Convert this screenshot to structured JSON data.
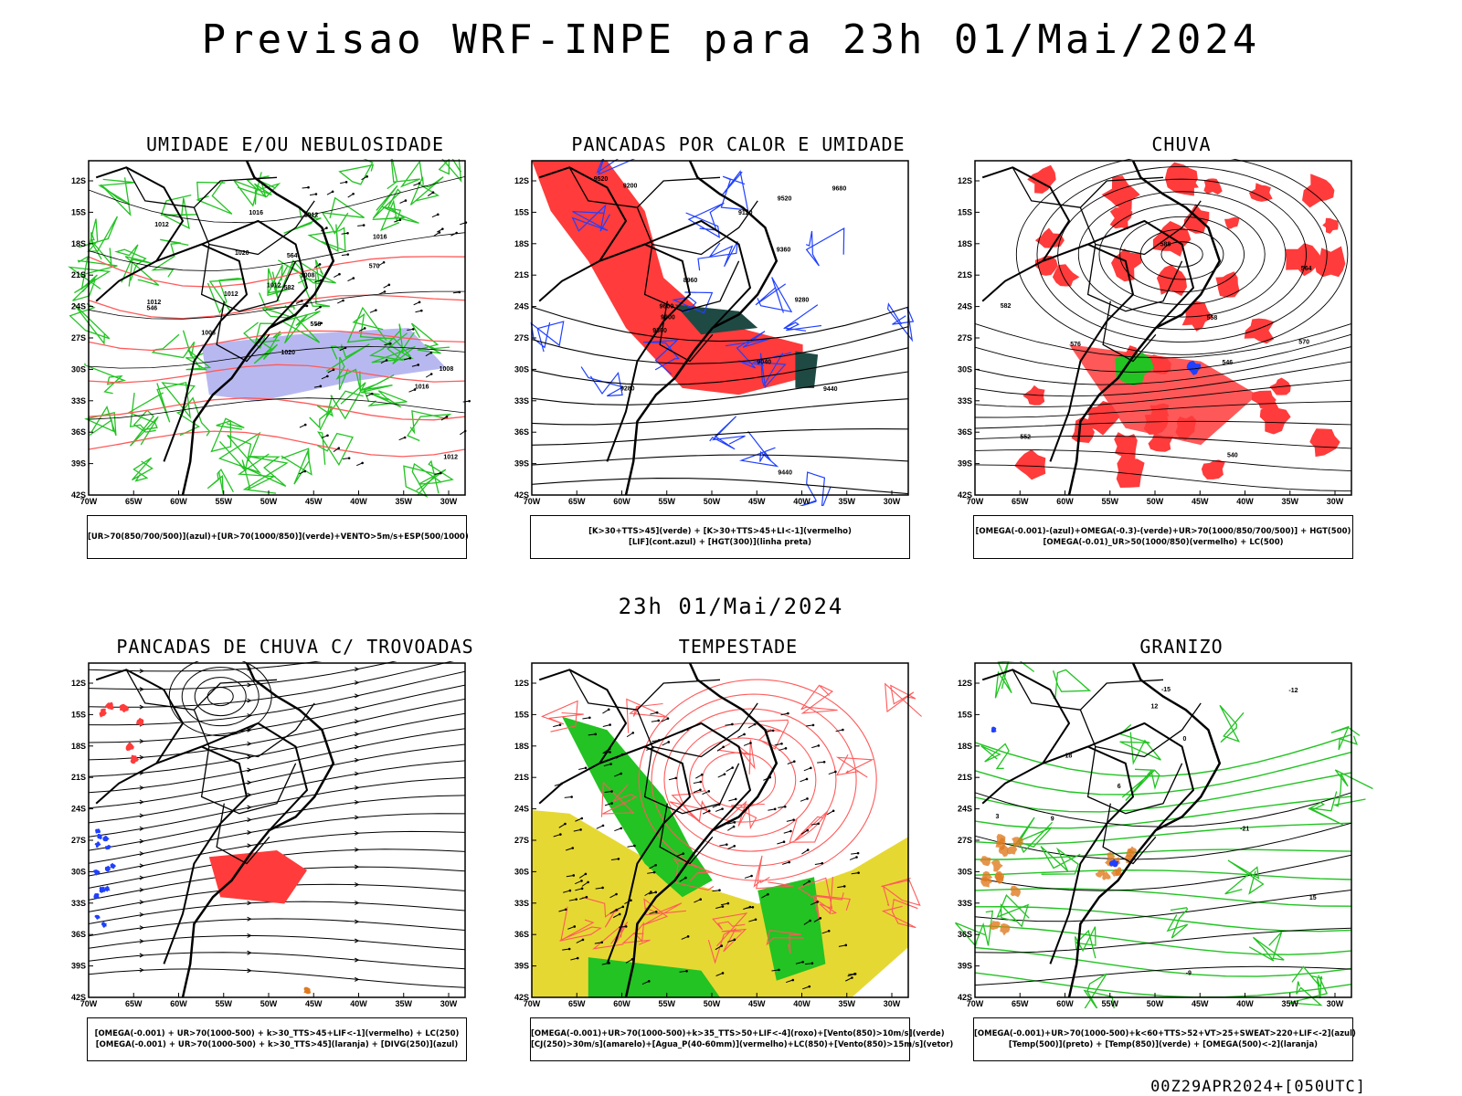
{
  "title": "Previsao WRF-INPE  para 23h 01/Mai/2024",
  "mid_title": "23h 01/Mai/2024",
  "footer": "00Z29APR2024+[050UTC]",
  "axes": {
    "lat_labels": [
      "12S",
      "15S",
      "18S",
      "21S",
      "24S",
      "27S",
      "30S",
      "33S",
      "36S",
      "39S",
      "42S"
    ],
    "lon_labels": [
      "70W",
      "65W",
      "60W",
      "55W",
      "50W",
      "45W",
      "40W",
      "35W",
      "30W"
    ]
  },
  "colors": {
    "green": "#22c322",
    "red": "#ff3b3b",
    "blue": "#2040ff",
    "lavender": "#b0b0f0",
    "darkteal": "#1f4a44",
    "yellow": "#e6d833",
    "salmon": "#ff5a5a",
    "orange": "#e07a20",
    "black": "#000000"
  },
  "panels": [
    {
      "title": "UMIDADE E/OU NEBULOSIDADE",
      "legend": [
        "[UR>70(850/700/500)](azul)+[UR>70(1000/850)](verde)+VENTO>5m/s+ESP(500/1000)"
      ]
    },
    {
      "title": "PANCADAS POR CALOR E UMIDADE",
      "legend": [
        "[K>30+TTS>45](verde) + [K>30+TTS>45+LI<-1](vermelho)",
        "[LIF](cont.azul) + [HGT(300)](linha preta)"
      ]
    },
    {
      "title": "CHUVA",
      "legend": [
        "[OMEGA(-0.001)-(azul)+OMEGA(-0.3)-(verde)+UR>70(1000/850/700/500)] + HGT(500)",
        "[OMEGA(-0.01)_UR>50(1000/850)(vermelho) + LC(500)"
      ]
    },
    {
      "title": "PANCADAS DE CHUVA C/ TROVOADAS",
      "legend": [
        "[OMEGA(-0.001) + UR>70(1000-500) + k>30_TTS>45+LIF<-1](vermelho) + LC(250)",
        "[OMEGA(-0.001) + UR>70(1000-500) + k>30_TTS>45](laranja) + [DIVG(250)](azul)"
      ]
    },
    {
      "title": "TEMPESTADE",
      "legend": [
        "[OMEGA(-0.001)+UR>70(1000-500)+k>35_TTS>50+LIF<-4](roxo)+[Vento(850)>10m/s](verde)",
        "[CJ(250)>30m/s](amarelo)+[Agua_P(40-60mm)](vermelho)+LC(850)+[Vento(850)>15m/s](vetor)"
      ]
    },
    {
      "title": "GRANIZO",
      "legend": [
        "[OMEGA(-0.001)+UR>70(1000-500)+k<60+TTS>52+VT>25+SWEAT>220+LIF<-2](azul)",
        "[Temp(500)](preto) + [Temp(850)](verde) + [OMEGA(500)<-2](laranja)"
      ]
    }
  ],
  "contour_labels": {
    "p1": [
      "1012",
      "1012",
      "1016",
      "1016",
      "1008",
      "1012",
      "1016",
      "1008",
      "1012",
      "1020",
      "1012",
      "1008",
      "1012",
      "1020",
      "570",
      "558",
      "546",
      "582",
      "564"
    ],
    "p2": [
      "9680",
      "9600",
      "9520",
      "9440",
      "9360",
      "9280",
      "9200",
      "9120",
      "9040",
      "8960",
      "9600",
      "9520",
      "9440",
      "9360",
      "9280"
    ],
    "p3": [
      "588",
      "582",
      "576",
      "570",
      "564",
      "558",
      "552",
      "546",
      "540"
    ],
    "p6": [
      "-21",
      "-18",
      "-15",
      "-12",
      "-9",
      "0",
      "3",
      "6",
      "9",
      "12",
      "15"
    ]
  }
}
